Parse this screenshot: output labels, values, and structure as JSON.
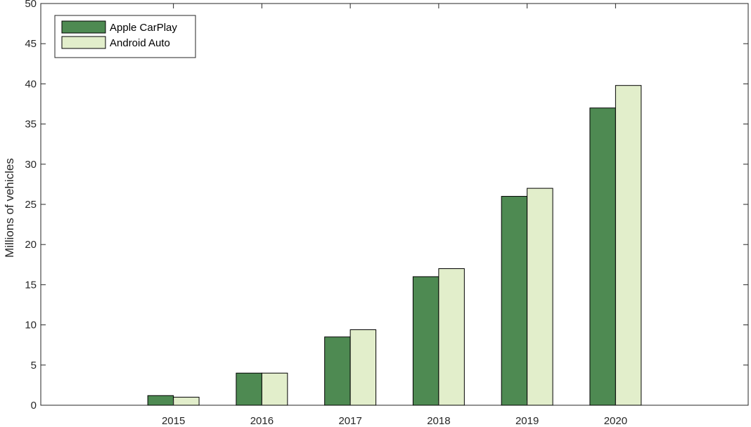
{
  "chart_data": {
    "type": "bar",
    "title": "",
    "xlabel": "",
    "ylabel": "Millions of vehicles",
    "categories": [
      "2015",
      "2016",
      "2017",
      "2018",
      "2019",
      "2020"
    ],
    "series": [
      {
        "name": "Apple CarPlay",
        "values": [
          1.2,
          4.0,
          8.5,
          16.0,
          26.0,
          37.0
        ],
        "color": "#4e8a52"
      },
      {
        "name": "Android Auto",
        "values": [
          1.0,
          4.0,
          9.4,
          17.0,
          27.0,
          39.8
        ],
        "color": "#e2eecb"
      }
    ],
    "ylim": [
      0,
      50
    ],
    "yticks": [
      0,
      5,
      10,
      15,
      20,
      25,
      30,
      35,
      40,
      45,
      50
    ],
    "grid": false,
    "legend_position": "top-left"
  }
}
